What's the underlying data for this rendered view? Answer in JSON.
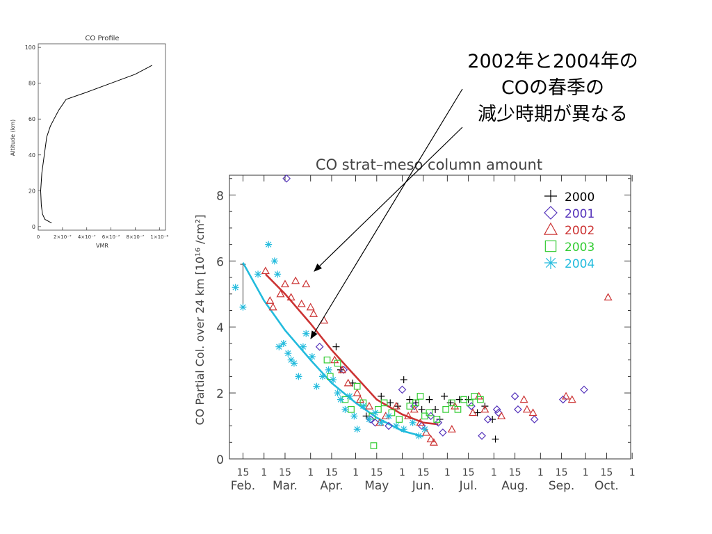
{
  "annotation": {
    "lines": [
      "2002年と2004年の",
      "COの春季の",
      "減少時期が異なる"
    ]
  },
  "chart_data": [
    {
      "type": "line",
      "title": "CO Profile",
      "xlabel": "VMR",
      "ylabel": "Altitude (km)",
      "xlim": [
        0,
        1.05e-06
      ],
      "ylim": [
        -2,
        102
      ],
      "x_ticks": [
        0,
        2e-07,
        4e-07,
        6e-07,
        8e-07,
        1e-06
      ],
      "x_tick_labels": [
        "0",
        "2×10⁻⁷",
        "4×10⁻⁷",
        "6×10⁻⁷",
        "8×10⁻⁷",
        "1×10⁻⁶"
      ],
      "y_ticks": [
        0,
        20,
        40,
        60,
        80,
        100
      ],
      "y_tick_labels": [
        "0",
        "20",
        "40",
        "60",
        "80",
        "100"
      ],
      "line_color": "#000000",
      "x": [
        1.1e-07,
        5.5e-08,
        3.5e-08,
        2.5e-08,
        2e-08,
        3e-08,
        5e-08,
        7e-08,
        1e-07,
        1.3e-07,
        1.7e-07,
        2.3e-07,
        4e-07,
        6e-07,
        8e-07,
        9.4e-07
      ],
      "y": [
        2,
        4,
        7,
        12,
        20,
        30,
        40,
        50,
        56,
        60,
        65,
        71,
        75,
        80,
        85,
        90
      ]
    },
    {
      "type": "scatter",
      "title": "CO strat–meso column amount",
      "xlabel": "",
      "ylabel": "CO Partial Col. over 24 km [10¹⁶ /cm²]",
      "xlim": [
        "Feb. 6",
        "Oct. 31"
      ],
      "ylim": [
        0,
        8.6
      ],
      "grid": false,
      "legend_position": "top-right",
      "y_ticks": [
        0,
        2,
        4,
        6,
        8
      ],
      "y_tick_labels": [
        "0",
        "2",
        "4",
        "6",
        "8"
      ],
      "x_ticks": [
        {
          "label": "15",
          "date": "Feb. 15"
        },
        {
          "label": "1",
          "date": "Mar. 1"
        },
        {
          "label": "15",
          "date": "Mar. 15"
        },
        {
          "label": "1",
          "date": "Apr. 1"
        },
        {
          "label": "15",
          "date": "Apr. 15"
        },
        {
          "label": "1",
          "date": "May 1"
        },
        {
          "label": "15",
          "date": "May 15"
        },
        {
          "label": "1",
          "date": "Jun. 1"
        },
        {
          "label": "15",
          "date": "Jun. 15"
        },
        {
          "label": "1",
          "date": "Jul. 1"
        },
        {
          "label": "15",
          "date": "Jul. 15"
        },
        {
          "label": "1",
          "date": "Aug. 1"
        },
        {
          "label": "15",
          "date": "Aug. 15"
        },
        {
          "label": "1",
          "date": "Sep. 1"
        },
        {
          "label": "15",
          "date": "Sep. 15"
        },
        {
          "label": "1",
          "date": "Oct. 1"
        },
        {
          "label": "15",
          "date": "Oct. 15"
        },
        {
          "label": "1",
          "date": "Nov. 1"
        }
      ],
      "month_labels": [
        {
          "label": "Feb.",
          "date": "Feb. 15"
        },
        {
          "label": "Mar.",
          "date": "Mar. 15"
        },
        {
          "label": "Apr.",
          "date": "Apr. 15"
        },
        {
          "label": "May",
          "date": "May 15"
        },
        {
          "label": "Jun.",
          "date": "Jun. 15"
        },
        {
          "label": "Jul.",
          "date": "Jul. 15"
        },
        {
          "label": "Aug.",
          "date": "Aug. 15"
        },
        {
          "label": "Sep.",
          "date": "Sep. 15"
        },
        {
          "label": "Oct.",
          "date": "Oct. 15"
        }
      ],
      "error_bar": {
        "date": "Feb. 15",
        "low": 4.6,
        "high": 5.9
      },
      "series": [
        {
          "name": "2000",
          "marker": "plus",
          "color": "#000000",
          "points": [
            {
              "x": "Apr. 18",
              "y": 3.4
            },
            {
              "x": "Apr. 21",
              "y": 2.7
            },
            {
              "x": "Apr. 29",
              "y": 2.3
            },
            {
              "x": "May 8",
              "y": 1.3
            },
            {
              "x": "May 18",
              "y": 1.9
            },
            {
              "x": "May 24",
              "y": 1.7
            },
            {
              "x": "May 29",
              "y": 1.6
            },
            {
              "x": "Jun. 2",
              "y": 2.4
            },
            {
              "x": "Jun. 6",
              "y": 1.8
            },
            {
              "x": "Jun. 10",
              "y": 1.7
            },
            {
              "x": "Jun. 14",
              "y": 1.5
            },
            {
              "x": "Jun. 19",
              "y": 1.8
            },
            {
              "x": "Jun. 23",
              "y": 1.5
            },
            {
              "x": "Jun. 29",
              "y": 1.9
            },
            {
              "x": "Jul. 3",
              "y": 1.7
            },
            {
              "x": "Jul. 9",
              "y": 1.8
            },
            {
              "x": "Jul. 15",
              "y": 1.8
            },
            {
              "x": "Jul. 21",
              "y": 1.4
            },
            {
              "x": "Jul. 26",
              "y": 1.6
            },
            {
              "x": "Jul. 31",
              "y": 1.2
            },
            {
              "x": "Aug. 2",
              "y": 0.6
            },
            {
              "x": "Jun. 26",
              "y": 1.2
            }
          ]
        },
        {
          "name": "2001",
          "marker": "diamond",
          "color": "#5533bb",
          "points": [
            {
              "x": "Mar. 16",
              "y": 8.5
            },
            {
              "x": "Apr. 7",
              "y": 3.4
            },
            {
              "x": "Apr. 23",
              "y": 2.7
            },
            {
              "x": "May 11",
              "y": 1.2
            },
            {
              "x": "May 14",
              "y": 1.1
            },
            {
              "x": "May 23",
              "y": 1.0
            },
            {
              "x": "Jun. 1",
              "y": 2.1
            },
            {
              "x": "Jun. 9",
              "y": 1.6
            },
            {
              "x": "Jun. 14",
              "y": 1.0
            },
            {
              "x": "Jun. 20",
              "y": 1.3
            },
            {
              "x": "Jun. 25",
              "y": 1.1
            },
            {
              "x": "Jun. 28",
              "y": 0.8
            },
            {
              "x": "Jul. 17",
              "y": 1.6
            },
            {
              "x": "Jul. 24",
              "y": 0.7
            },
            {
              "x": "Jul. 28",
              "y": 1.2
            },
            {
              "x": "Aug. 3",
              "y": 1.5
            },
            {
              "x": "Aug. 4",
              "y": 1.4
            },
            {
              "x": "Aug. 15",
              "y": 1.9
            },
            {
              "x": "Aug. 17",
              "y": 1.5
            },
            {
              "x": "Aug. 28",
              "y": 1.2
            },
            {
              "x": "Sep. 16",
              "y": 1.8
            },
            {
              "x": "Sep. 30",
              "y": 2.1
            }
          ]
        },
        {
          "name": "2002",
          "marker": "triangle",
          "color": "#cc3333",
          "points": [
            {
              "x": "Mar. 2",
              "y": 5.7
            },
            {
              "x": "Mar. 5",
              "y": 4.8
            },
            {
              "x": "Mar. 7",
              "y": 4.6
            },
            {
              "x": "Mar. 12",
              "y": 5.0
            },
            {
              "x": "Mar. 15",
              "y": 5.3
            },
            {
              "x": "Mar. 19",
              "y": 4.9
            },
            {
              "x": "Mar. 22",
              "y": 5.4
            },
            {
              "x": "Mar. 26",
              "y": 4.7
            },
            {
              "x": "Mar. 29",
              "y": 5.3
            },
            {
              "x": "Apr. 1",
              "y": 4.6
            },
            {
              "x": "Apr. 3",
              "y": 4.4
            },
            {
              "x": "Apr. 10",
              "y": 4.2
            },
            {
              "x": "Apr. 17",
              "y": 3.0
            },
            {
              "x": "Apr. 22",
              "y": 2.7
            },
            {
              "x": "Apr. 26",
              "y": 2.3
            },
            {
              "x": "May 2",
              "y": 2.0
            },
            {
              "x": "May 4",
              "y": 1.8
            },
            {
              "x": "May 10",
              "y": 1.6
            },
            {
              "x": "May 17",
              "y": 1.1
            },
            {
              "x": "May 21",
              "y": 1.3
            },
            {
              "x": "May 28",
              "y": 1.6
            },
            {
              "x": "Jun. 5",
              "y": 1.3
            },
            {
              "x": "Jun. 9",
              "y": 1.5
            },
            {
              "x": "Jun. 13",
              "y": 1.1
            },
            {
              "x": "Jun. 17",
              "y": 0.8
            },
            {
              "x": "Jun. 20",
              "y": 0.6
            },
            {
              "x": "Jun. 22",
              "y": 0.5
            },
            {
              "x": "Jul. 4",
              "y": 0.9
            },
            {
              "x": "Jul. 6",
              "y": 1.6
            },
            {
              "x": "Jul. 18",
              "y": 1.4
            },
            {
              "x": "Jul. 22",
              "y": 1.9
            },
            {
              "x": "Jul. 26",
              "y": 1.5
            },
            {
              "x": "Aug. 6",
              "y": 1.3
            },
            {
              "x": "Aug. 21",
              "y": 1.8
            },
            {
              "x": "Aug. 23",
              "y": 1.5
            },
            {
              "x": "Aug. 27",
              "y": 1.4
            },
            {
              "x": "Sep. 18",
              "y": 1.9
            },
            {
              "x": "Sep. 22",
              "y": 1.8
            },
            {
              "x": "Oct. 16",
              "y": 4.9
            }
          ]
        },
        {
          "name": "2003",
          "marker": "square",
          "color": "#33cc33",
          "points": [
            {
              "x": "Apr. 12",
              "y": 3.0
            },
            {
              "x": "Apr. 14",
              "y": 2.5
            },
            {
              "x": "Apr. 19",
              "y": 2.9
            },
            {
              "x": "Apr. 24",
              "y": 1.8
            },
            {
              "x": "Apr. 28",
              "y": 1.5
            },
            {
              "x": "May 2",
              "y": 2.2
            },
            {
              "x": "May 6",
              "y": 1.7
            },
            {
              "x": "May 12",
              "y": 1.3
            },
            {
              "x": "May 13",
              "y": 0.4
            },
            {
              "x": "May 16",
              "y": 1.5
            },
            {
              "x": "May 20",
              "y": 1.7
            },
            {
              "x": "May 25",
              "y": 1.4
            },
            {
              "x": "May 30",
              "y": 1.2
            },
            {
              "x": "Jun. 6",
              "y": 1.6
            },
            {
              "x": "Jun. 10",
              "y": 1.7
            },
            {
              "x": "Jun. 13",
              "y": 1.9
            },
            {
              "x": "Jun. 16",
              "y": 1.3
            },
            {
              "x": "Jun. 19",
              "y": 1.4
            },
            {
              "x": "Jun. 24",
              "y": 1.2
            },
            {
              "x": "Jun. 30",
              "y": 1.5
            },
            {
              "x": "Jul. 4",
              "y": 1.7
            },
            {
              "x": "Jul. 8",
              "y": 1.5
            },
            {
              "x": "Jul. 12",
              "y": 1.8
            },
            {
              "x": "Jul. 16",
              "y": 1.7
            },
            {
              "x": "Jul. 19",
              "y": 1.9
            },
            {
              "x": "Jul. 23",
              "y": 1.8
            }
          ]
        },
        {
          "name": "2004",
          "marker": "asterisk",
          "color": "#22bbdd",
          "points": [
            {
              "x": "Feb. 10",
              "y": 5.2
            },
            {
              "x": "Feb. 15",
              "y": 4.6
            },
            {
              "x": "Feb. 25",
              "y": 5.6
            },
            {
              "x": "Mar. 4",
              "y": 6.5
            },
            {
              "x": "Mar. 8",
              "y": 6.0
            },
            {
              "x": "Mar. 10",
              "y": 5.6
            },
            {
              "x": "Mar. 11",
              "y": 3.4
            },
            {
              "x": "Mar. 14",
              "y": 3.5
            },
            {
              "x": "Mar. 17",
              "y": 3.2
            },
            {
              "x": "Mar. 19",
              "y": 3.0
            },
            {
              "x": "Mar. 21",
              "y": 2.9
            },
            {
              "x": "Mar. 24",
              "y": 2.5
            },
            {
              "x": "Mar. 27",
              "y": 3.4
            },
            {
              "x": "Mar. 29",
              "y": 3.8
            },
            {
              "x": "Apr. 2",
              "y": 3.1
            },
            {
              "x": "Apr. 5",
              "y": 2.2
            },
            {
              "x": "Apr. 9",
              "y": 2.5
            },
            {
              "x": "Apr. 13",
              "y": 2.7
            },
            {
              "x": "Apr. 16",
              "y": 2.4
            },
            {
              "x": "Apr. 19",
              "y": 2.0
            },
            {
              "x": "Apr. 21",
              "y": 1.8
            },
            {
              "x": "Apr. 24",
              "y": 1.5
            },
            {
              "x": "Apr. 27",
              "y": 1.9
            },
            {
              "x": "Apr. 30",
              "y": 1.3
            },
            {
              "x": "May 2",
              "y": 0.9
            },
            {
              "x": "May 6",
              "y": 1.6
            },
            {
              "x": "May 10",
              "y": 1.2
            },
            {
              "x": "May 14",
              "y": 1.4
            },
            {
              "x": "May 18",
              "y": 1.1
            },
            {
              "x": "May 23",
              "y": 1.3
            },
            {
              "x": "May 28",
              "y": 1.0
            },
            {
              "x": "Jun. 2",
              "y": 0.9
            },
            {
              "x": "Jun. 8",
              "y": 1.1
            },
            {
              "x": "Jun. 12",
              "y": 0.7
            },
            {
              "x": "Jun. 16",
              "y": 0.9
            }
          ]
        }
      ],
      "fit_lines": [
        {
          "name": "2002",
          "color": "#cc3333",
          "points": [
            {
              "x": "Mar. 2",
              "y": 5.6
            },
            {
              "x": "Mar. 15",
              "y": 5.0
            },
            {
              "x": "Apr. 1",
              "y": 4.1
            },
            {
              "x": "Apr. 15",
              "y": 3.3
            },
            {
              "x": "May 1",
              "y": 2.5
            },
            {
              "x": "May 15",
              "y": 1.8
            },
            {
              "x": "Jun. 1",
              "y": 1.35
            },
            {
              "x": "Jun. 15",
              "y": 1.1
            },
            {
              "x": "Jun. 25",
              "y": 1.05
            }
          ]
        },
        {
          "name": "2004",
          "color": "#22bbdd",
          "points": [
            {
              "x": "Feb. 15",
              "y": 5.95
            },
            {
              "x": "Mar. 1",
              "y": 4.8
            },
            {
              "x": "Mar. 15",
              "y": 3.9
            },
            {
              "x": "Apr. 1",
              "y": 3.0
            },
            {
              "x": "Apr. 15",
              "y": 2.3
            },
            {
              "x": "May 1",
              "y": 1.7
            },
            {
              "x": "May 15",
              "y": 1.25
            },
            {
              "x": "Jun. 1",
              "y": 0.85
            },
            {
              "x": "Jun. 15",
              "y": 0.68
            }
          ]
        }
      ]
    }
  ]
}
